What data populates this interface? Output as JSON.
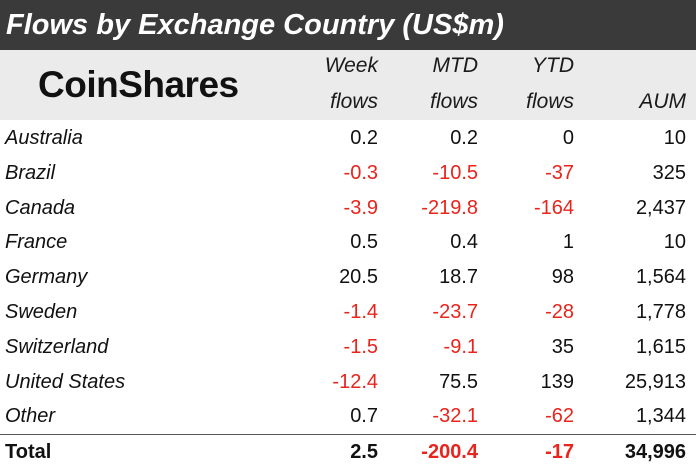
{
  "title": "Flows by Exchange Country (US$m)",
  "logo": "CoinShares",
  "columns": [
    {
      "line1": "Week",
      "line2": "flows"
    },
    {
      "line1": "MTD",
      "line2": "flows"
    },
    {
      "line1": "YTD",
      "line2": "flows"
    },
    {
      "line1": "",
      "line2": "AUM"
    }
  ],
  "rows": [
    {
      "country": "Australia",
      "week": "0.2",
      "mtd": "0.2",
      "ytd": "0",
      "aum": "10"
    },
    {
      "country": "Brazil",
      "week": "-0.3",
      "mtd": "-10.5",
      "ytd": "-37",
      "aum": "325"
    },
    {
      "country": "Canada",
      "week": "-3.9",
      "mtd": "-219.8",
      "ytd": "-164",
      "aum": "2,437"
    },
    {
      "country": "France",
      "week": "0.5",
      "mtd": "0.4",
      "ytd": "1",
      "aum": "10"
    },
    {
      "country": "Germany",
      "week": "20.5",
      "mtd": "18.7",
      "ytd": "98",
      "aum": "1,564"
    },
    {
      "country": "Sweden",
      "week": "-1.4",
      "mtd": "-23.7",
      "ytd": "-28",
      "aum": "1,778"
    },
    {
      "country": "Switzerland",
      "week": "-1.5",
      "mtd": "-9.1",
      "ytd": "35",
      "aum": "1,615"
    },
    {
      "country": "United States",
      "week": "-12.4",
      "mtd": "75.5",
      "ytd": "139",
      "aum": "25,913"
    },
    {
      "country": "Other",
      "week": "0.7",
      "mtd": "-32.1",
      "ytd": "-62",
      "aum": "1,344"
    }
  ],
  "total": {
    "label": "Total",
    "week": "2.5",
    "mtd": "-200.4",
    "ytd": "-17",
    "aum": "34,996"
  },
  "colors": {
    "title_bg": "#3a3a3a",
    "header_bg": "#ebebeb",
    "negative": "#e8241c",
    "text": "#111111"
  }
}
